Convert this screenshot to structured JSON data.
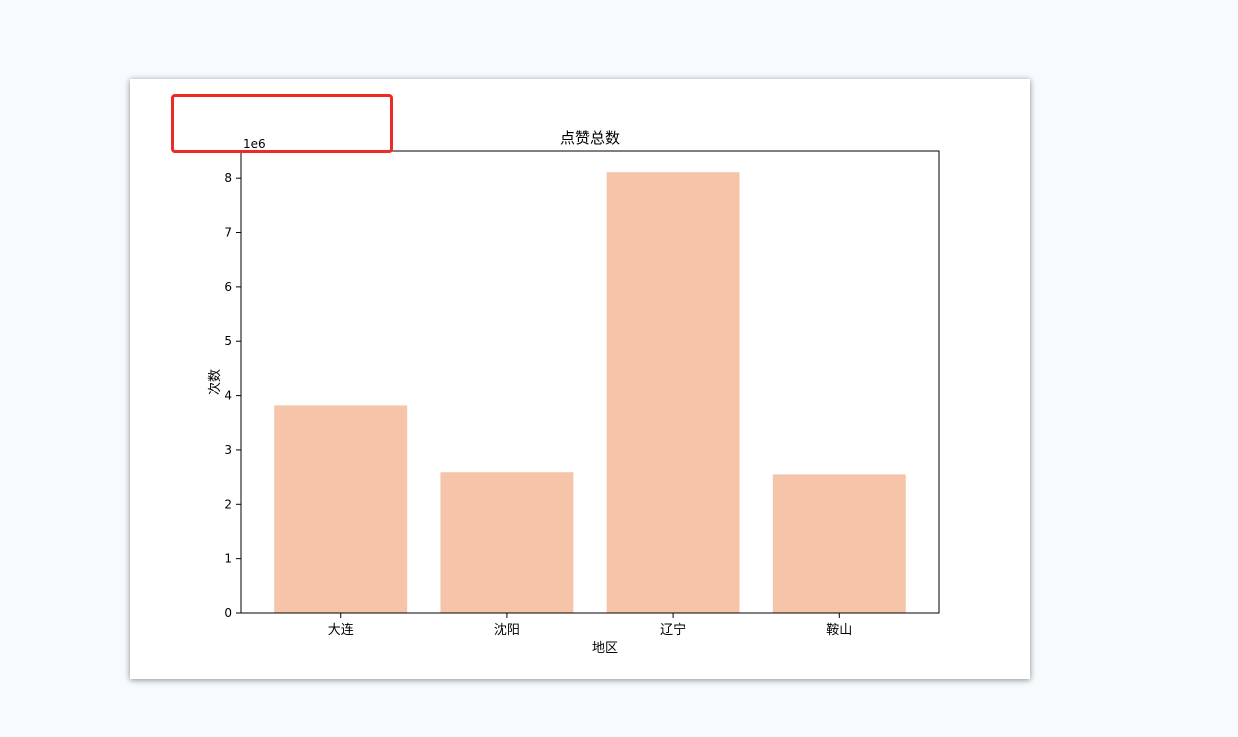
{
  "chart_data": {
    "type": "bar",
    "title": "点赞总数",
    "xlabel": "地区",
    "ylabel": "次数",
    "y_offset_label": "1e6",
    "categories": [
      "大连",
      "沈阳",
      "辽宁",
      "鞍山"
    ],
    "values": [
      3820000,
      2590000,
      8110000,
      2550000
    ],
    "ylim": [
      0,
      8500000
    ],
    "yticks": [
      0,
      1000000,
      2000000,
      3000000,
      4000000,
      5000000,
      6000000,
      7000000,
      8000000
    ],
    "ytick_labels": [
      "0",
      "1",
      "2",
      "3",
      "4",
      "5",
      "6",
      "7",
      "8"
    ],
    "bar_color": "#f6c4a9",
    "grid": false,
    "legend": "none"
  },
  "annotation": {
    "box_color": "#ee2a24"
  }
}
